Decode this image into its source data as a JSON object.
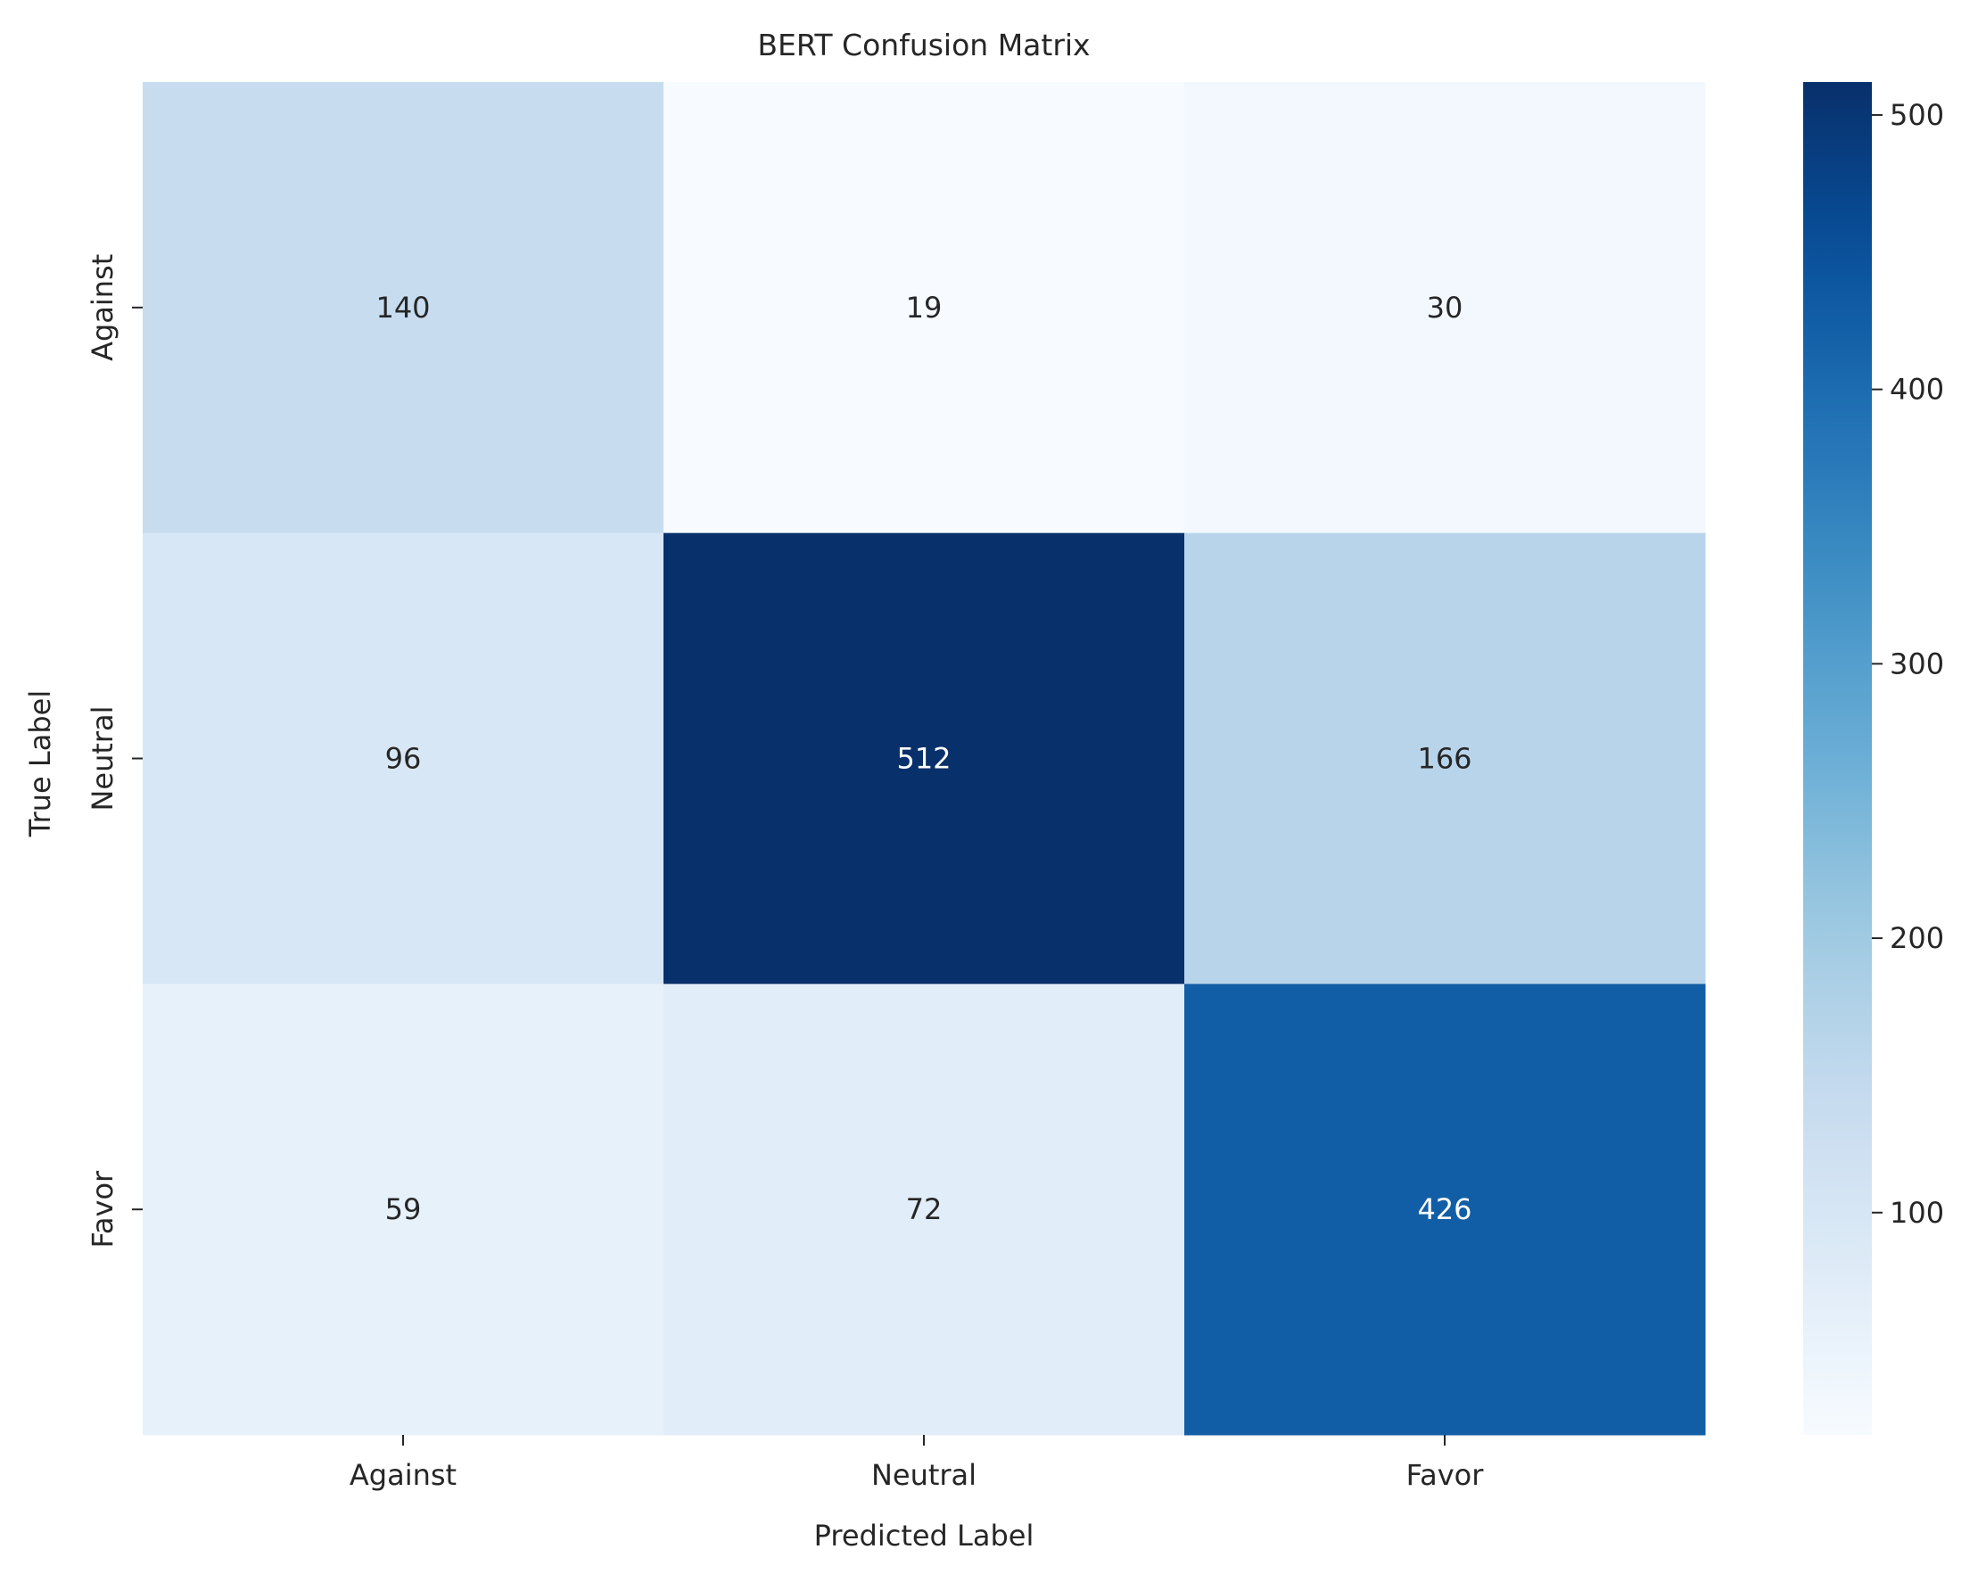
{
  "chart_data": {
    "type": "heatmap",
    "title": "BERT Confusion Matrix",
    "xlabel": "Predicted Label",
    "ylabel": "True Label",
    "x_categories": [
      "Against",
      "Neutral",
      "Favor"
    ],
    "y_categories": [
      "Against",
      "Neutral",
      "Favor"
    ],
    "values": [
      [
        140,
        19,
        30
      ],
      [
        96,
        512,
        166
      ],
      [
        59,
        72,
        426
      ]
    ],
    "colormap": "Blues",
    "value_range": [
      19,
      512
    ],
    "colorbar_ticks": [
      100,
      200,
      300,
      400,
      500
    ],
    "colors": {
      "low": "#f7fbff",
      "high": "#08306b",
      "dark_text": "#262626",
      "light_text": "#ffffff"
    }
  }
}
